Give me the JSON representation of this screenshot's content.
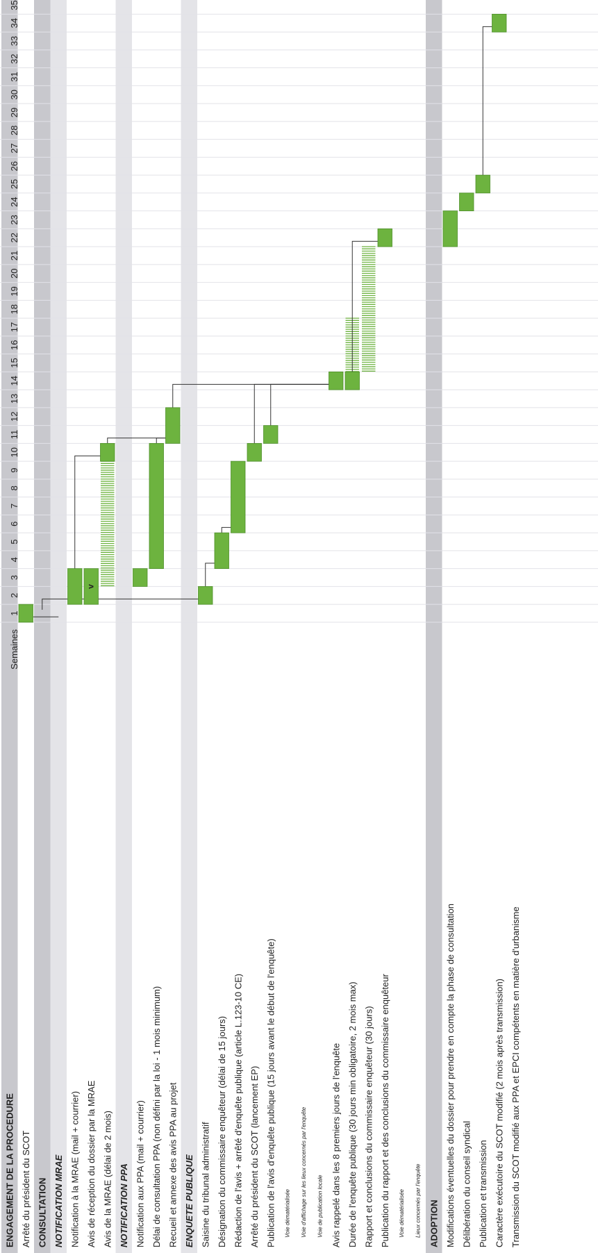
{
  "chart_data": {
    "type": "gantt",
    "weeks_label": "Semaines",
    "weeks": [
      1,
      2,
      3,
      4,
      5,
      6,
      7,
      8,
      9,
      10,
      11,
      12,
      13,
      14,
      15,
      16,
      17,
      18,
      19,
      20,
      21,
      22,
      23,
      24,
      25,
      26,
      27,
      28,
      29,
      30,
      31,
      32,
      33,
      34,
      35
    ],
    "colors": {
      "bar": "#6db33f",
      "bar_border": "#4e8f2a",
      "hatch": "#6db33f",
      "section_band": "#c8c8cd",
      "subsection_band": "#e4e4e8",
      "grid": "#e2e2e8",
      "connector": "#333333"
    },
    "rows": [
      {
        "label": "ENGAGEMENT DE LA PROCEDURE",
        "kind": "section"
      },
      {
        "label": "Arrêté du président du SCOT",
        "kind": "task",
        "bars": [
          {
            "start": 1,
            "end": 1
          }
        ]
      },
      {
        "label": "CONSULTATION",
        "kind": "section"
      },
      {
        "label": "NOTIFICATION MRAE",
        "kind": "subsection"
      },
      {
        "label": "Notification à la MRAE (mail + courrier)",
        "kind": "task",
        "bars": [
          {
            "start": 2,
            "end": 3
          }
        ]
      },
      {
        "label": "Avis de réception du dossier par la MRAE",
        "kind": "task",
        "bars": [
          {
            "start": 2,
            "end": 3,
            "mark": "v"
          }
        ]
      },
      {
        "label": "Avis de la MRAE (délai de 2 mois)",
        "kind": "task",
        "bars": [
          {
            "start": 10,
            "end": 10
          }
        ],
        "hatch": [
          {
            "start": 3,
            "end": 9
          }
        ]
      },
      {
        "label": "NOTIFICATION PPA",
        "kind": "subsection"
      },
      {
        "label": "Notification aux PPA (mail + courrier)",
        "kind": "task",
        "bars": [
          {
            "start": 3,
            "end": 3
          }
        ]
      },
      {
        "label": "Délai de consultation PPA (non défini par la loi - 1 mois minimum)",
        "kind": "task",
        "bars": [
          {
            "start": 4,
            "end": 10
          }
        ]
      },
      {
        "label": "Recueil et annexe des avis PPA au projet",
        "kind": "task",
        "bars": [
          {
            "start": 11,
            "end": 12
          }
        ]
      },
      {
        "label": "ENQUETE PUBLIQUE",
        "kind": "subsection"
      },
      {
        "label": "Saisine du tribunal administratif",
        "kind": "task",
        "bars": [
          {
            "start": 2,
            "end": 2
          }
        ]
      },
      {
        "label": "Désignation du commissaire enquêteur (délai de 15 jours)",
        "kind": "task",
        "bars": [
          {
            "start": 4,
            "end": 5
          }
        ]
      },
      {
        "label": "Rédaction de l'avis + arrêté d'enquête publique (article L.123-10 CE)",
        "kind": "task",
        "bars": [
          {
            "start": 6,
            "end": 9
          }
        ]
      },
      {
        "label": "Arrêté du président du SCOT (lancement EP)",
        "kind": "task",
        "bars": [
          {
            "start": 10,
            "end": 10
          }
        ]
      },
      {
        "label": "Publication de l'avis d'enquête publique (15 jours avant le début de l'enquête)",
        "kind": "task",
        "bars": [
          {
            "start": 11,
            "end": 11
          }
        ]
      },
      {
        "label": "Voie dématérialisée",
        "kind": "note"
      },
      {
        "label": "Voie d'affichage sur les lieux concernés par l'enquête",
        "kind": "note"
      },
      {
        "label": "Voie de publication locale",
        "kind": "note"
      },
      {
        "label": "Avis rappelé dans les 8 premiers jours de l'enquête",
        "kind": "task",
        "bars": [
          {
            "start": 14,
            "end": 14
          }
        ]
      },
      {
        "label": "Durée de l'enquête publique (30 jours min obligatoire, 2 mois max)",
        "kind": "task",
        "bars": [
          {
            "start": 14,
            "end": 14
          }
        ],
        "hatch": [
          {
            "start": 14,
            "end": 17
          }
        ]
      },
      {
        "label": "Rapport et conclusions du commissaire enquêteur (30 jours)",
        "kind": "task",
        "hatch": [
          {
            "start": 15,
            "end": 21
          }
        ]
      },
      {
        "label": "Publication du rapport et des conclusions du commissaire enquêteur",
        "kind": "task",
        "bars": [
          {
            "start": 22,
            "end": 22
          }
        ]
      },
      {
        "label": "Voie dématérialisée",
        "kind": "note"
      },
      {
        "label": "Lieux concernés par l'enquête",
        "kind": "note"
      },
      {
        "label": "ADOPTION",
        "kind": "section"
      },
      {
        "label": "Modifications éventuelles du dossier pour prendre en compte la phase de consultation",
        "kind": "task",
        "bars": [
          {
            "start": 22,
            "end": 23
          }
        ]
      },
      {
        "label": "Délibération du conseil syndical",
        "kind": "task",
        "bars": [
          {
            "start": 24,
            "end": 24
          }
        ]
      },
      {
        "label": "Publication et transmission",
        "kind": "task",
        "bars": [
          {
            "start": 25,
            "end": 25
          }
        ]
      },
      {
        "label": "Caractère exécutoire du SCOT modifié (2 mois après transmission)",
        "kind": "task",
        "bars": [
          {
            "start": 34,
            "end": 34
          }
        ]
      },
      {
        "label": "Transmission du SCOT modifié aux PPA et EPCI compétents en matière d'urbanisme",
        "kind": "task"
      }
    ],
    "connectors": [
      [
        1,
        3
      ],
      [
        2,
        12
      ],
      [
        4,
        6
      ],
      [
        6,
        10
      ],
      [
        9,
        10
      ],
      [
        10,
        20
      ],
      [
        12,
        13
      ],
      [
        13,
        14
      ],
      [
        15,
        20
      ],
      [
        16,
        20
      ],
      [
        21,
        23
      ],
      [
        29,
        30
      ]
    ]
  }
}
